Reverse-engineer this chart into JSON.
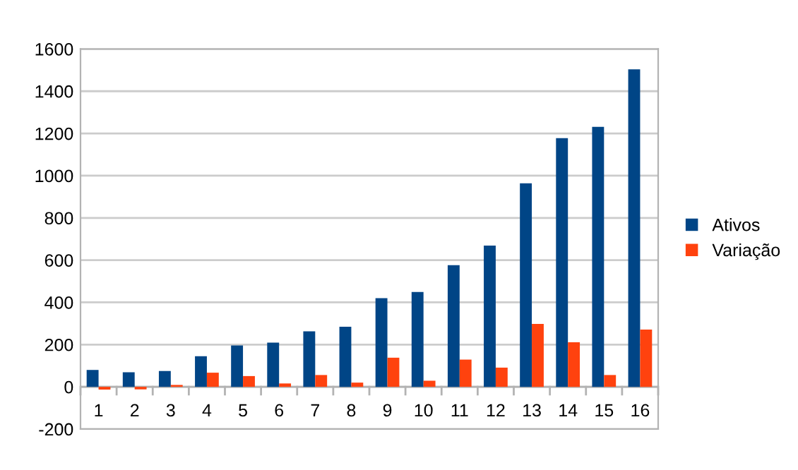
{
  "chart_data": {
    "type": "bar",
    "categories": [
      "1",
      "2",
      "3",
      "4",
      "5",
      "6",
      "7",
      "8",
      "9",
      "10",
      "11",
      "12",
      "13",
      "14",
      "15",
      "16"
    ],
    "series": [
      {
        "name": "Ativos",
        "color": "#004586",
        "values": [
          80,
          69,
          75,
          145,
          196,
          209,
          263,
          285,
          420,
          449,
          576,
          669,
          964,
          1178,
          1231,
          1504
        ]
      },
      {
        "name": "Variação",
        "color": "#ff420e",
        "values": [
          -13,
          -12,
          9,
          67,
          51,
          16,
          56,
          20,
          138,
          29,
          129,
          91,
          298,
          211,
          56,
          271
        ]
      }
    ],
    "ylim": [
      -200,
      1600
    ],
    "yticks": [
      -200,
      0,
      200,
      400,
      600,
      800,
      1000,
      1200,
      1400,
      1600
    ],
    "grid": "y",
    "legend": "right"
  }
}
